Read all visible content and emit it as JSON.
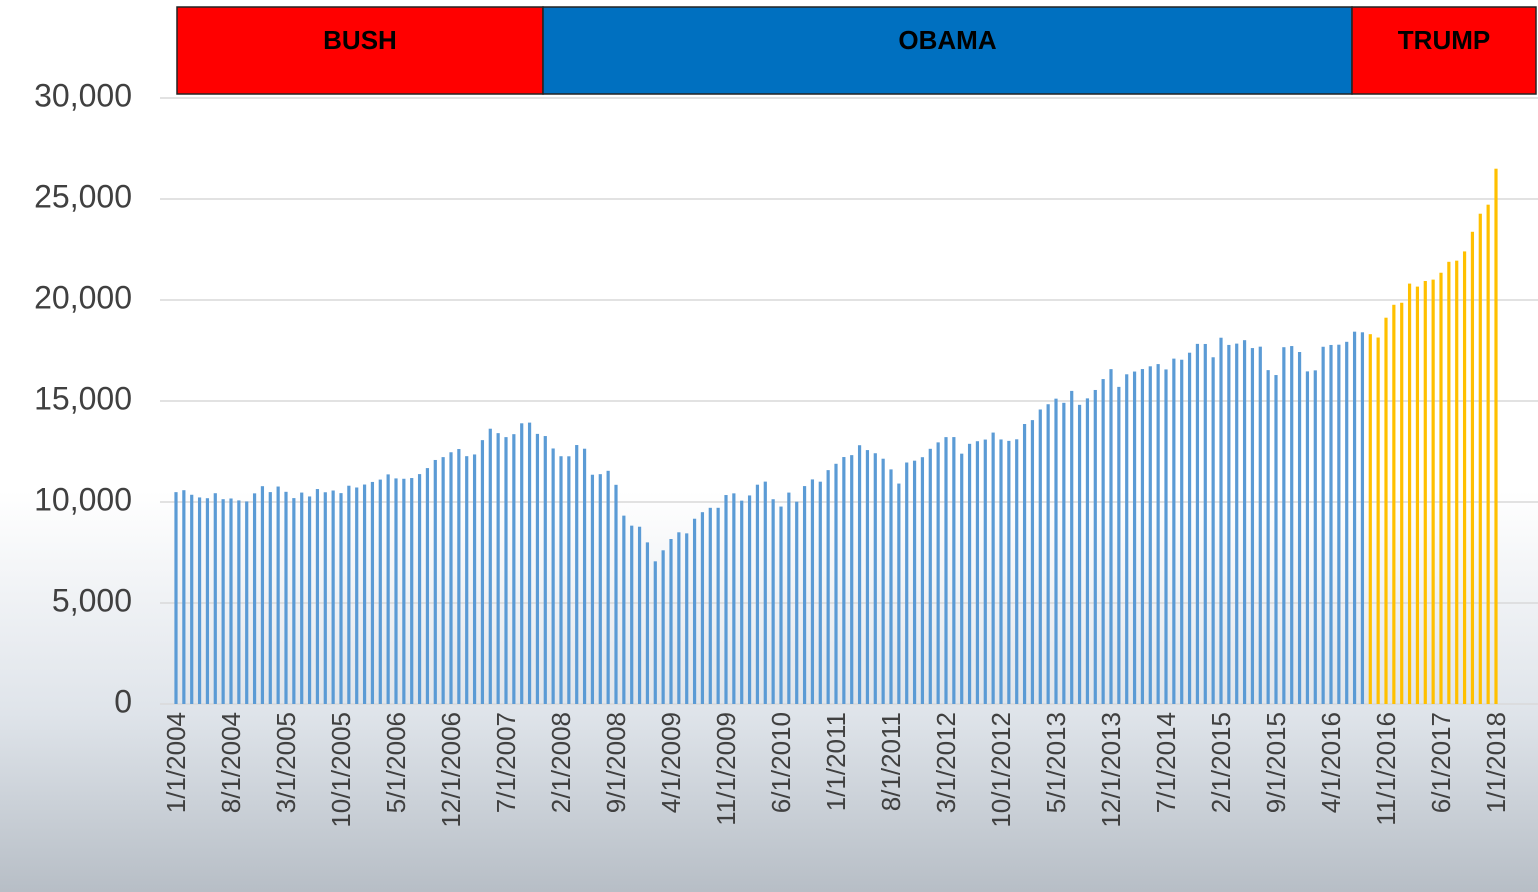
{
  "chart_data": {
    "type": "bar",
    "eras": [
      {
        "label": "BUSH",
        "color": "#ff0000"
      },
      {
        "label": "OBAMA",
        "color": "#0070c0"
      },
      {
        "label": "TRUMP",
        "color": "#ff0000"
      }
    ],
    "categories": [
      "1/1/2004",
      null,
      null,
      null,
      null,
      null,
      null,
      "8/1/2004",
      null,
      null,
      null,
      null,
      null,
      null,
      "3/1/2005",
      null,
      null,
      null,
      null,
      null,
      null,
      "10/1/2005",
      null,
      null,
      null,
      null,
      null,
      null,
      "5/1/2006",
      null,
      null,
      null,
      null,
      null,
      null,
      "12/1/2006",
      null,
      null,
      null,
      null,
      null,
      null,
      "7/1/2007",
      null,
      null,
      null,
      null,
      null,
      null,
      "2/1/2008",
      null,
      null,
      null,
      null,
      null,
      null,
      "9/1/2008",
      null,
      null,
      null,
      null,
      null,
      null,
      "4/1/2009",
      null,
      null,
      null,
      null,
      null,
      null,
      "11/1/2009",
      null,
      null,
      null,
      null,
      null,
      null,
      "6/1/2010",
      null,
      null,
      null,
      null,
      null,
      null,
      "1/1/2011",
      null,
      null,
      null,
      null,
      null,
      null,
      "8/1/2011",
      null,
      null,
      null,
      null,
      null,
      null,
      "3/1/2012",
      null,
      null,
      null,
      null,
      null,
      null,
      "10/1/2012",
      null,
      null,
      null,
      null,
      null,
      null,
      "5/1/2013",
      null,
      null,
      null,
      null,
      null,
      null,
      "12/1/2013",
      null,
      null,
      null,
      null,
      null,
      null,
      "7/1/2014",
      null,
      null,
      null,
      null,
      null,
      null,
      "2/1/2015",
      null,
      null,
      null,
      null,
      null,
      null,
      "9/1/2015",
      null,
      null,
      null,
      null,
      null,
      null,
      "4/1/2016",
      null,
      null,
      null,
      null,
      null,
      null,
      "11/1/2016",
      null,
      null,
      null,
      null,
      null,
      null,
      "6/1/2017",
      null,
      null,
      null,
      null,
      null,
      null,
      "1/1/2018"
    ],
    "series": [
      {
        "color": "#5b9bd5",
        "values": [
          10488,
          10584,
          10358,
          10226,
          10188,
          10435,
          10140,
          10174,
          10080,
          10027,
          10428,
          10783,
          10490,
          10766,
          10504,
          10193,
          10467,
          10275,
          10641,
          10482,
          10569,
          10440,
          10806,
          10718,
          10865,
          10993,
          11109,
          11367,
          11168,
          11150,
          11186,
          11381,
          11679,
          12081,
          12222,
          12463,
          12622,
          12269,
          12354,
          13063,
          13628,
          13409,
          13212,
          13358,
          13896,
          13930,
          13372,
          13265,
          12650,
          12266,
          12263,
          12820,
          12638,
          11350,
          11378,
          11544,
          10851,
          9325,
          8829,
          8776,
          8001,
          7063,
          7609,
          8168,
          8500,
          8447,
          9172,
          9496,
          9712,
          9713,
          10345,
          10428,
          10067,
          10325,
          10857,
          11009,
          10137,
          9774,
          10466,
          10015,
          10788,
          11118,
          11006,
          11578,
          11892,
          12226,
          12320,
          12811,
          12570,
          12414,
          12143,
          11614,
          10913,
          11955,
          12046,
          12218,
          12633,
          12952,
          13212,
          13214,
          12393,
          12880,
          13009,
          13091,
          13437,
          13096,
          13026,
          13104,
          13861,
          14054,
          14579,
          14840,
          15116,
          14910,
          15500,
          14810,
          15130,
          15546,
          16086,
          16577,
          15699,
          16322,
          16458,
          16581,
          16717,
          16827,
          16563,
          17098,
          17043,
          17391,
          17828,
          17823,
          17165,
          18133,
          17776,
          17841,
          18011,
          17620,
          17690,
          16528,
          16285,
          17664,
          17720,
          17425,
          16466,
          16517,
          17685,
          17774,
          17787,
          17930,
          18432,
          18401,
          null,
          null,
          null,
          null,
          null,
          null,
          null,
          null,
          null,
          null,
          null,
          null,
          null,
          null,
          null,
          null,
          null
        ]
      },
      {
        "color": "#ffc000",
        "values": [
          null,
          null,
          null,
          null,
          null,
          null,
          null,
          null,
          null,
          null,
          null,
          null,
          null,
          null,
          null,
          null,
          null,
          null,
          null,
          null,
          null,
          null,
          null,
          null,
          null,
          null,
          null,
          null,
          null,
          null,
          null,
          null,
          null,
          null,
          null,
          null,
          null,
          null,
          null,
          null,
          null,
          null,
          null,
          null,
          null,
          null,
          null,
          null,
          null,
          null,
          null,
          null,
          null,
          null,
          null,
          null,
          null,
          null,
          null,
          null,
          null,
          null,
          null,
          null,
          null,
          null,
          null,
          null,
          null,
          null,
          null,
          null,
          null,
          null,
          null,
          null,
          null,
          null,
          null,
          null,
          null,
          null,
          null,
          null,
          null,
          null,
          null,
          null,
          null,
          null,
          null,
          null,
          null,
          null,
          null,
          null,
          null,
          null,
          null,
          null,
          null,
          null,
          null,
          null,
          null,
          null,
          null,
          null,
          null,
          null,
          null,
          null,
          null,
          null,
          null,
          null,
          null,
          null,
          null,
          null,
          null,
          null,
          null,
          null,
          null,
          null,
          null,
          null,
          null,
          null,
          null,
          null,
          null,
          null,
          null,
          null,
          null,
          null,
          null,
          null,
          null,
          null,
          null,
          null,
          null,
          null,
          null,
          null,
          null,
          null,
          null,
          null,
          18308,
          18142,
          19124,
          19763,
          19864,
          20812,
          20663,
          20941,
          21009,
          21350,
          21891,
          21948,
          22405,
          23377,
          24272,
          24719,
          26500
        ]
      }
    ],
    "ylim": [
      0,
      30000
    ],
    "yticks": [
      0,
      {
        "value": 5000,
        "label": "5,000"
      },
      {
        "value": 10000,
        "label": "10,000"
      },
      {
        "value": 15000,
        "label": "15,000"
      },
      {
        "value": 20000,
        "label": "20,000"
      },
      {
        "value": 25000,
        "label": "25,000"
      },
      {
        "value": 30000,
        "label": "30,000"
      }
    ],
    "grid": true
  }
}
